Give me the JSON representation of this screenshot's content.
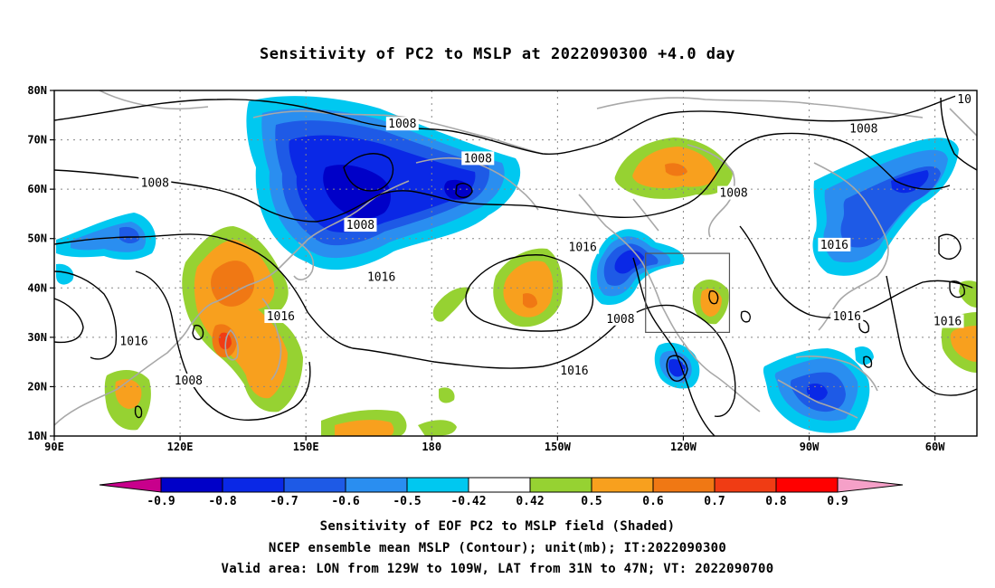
{
  "title": "Sensitivity of PC2 to MSLP at 2022090300 +4.0 day",
  "map": {
    "lon_range": [
      90,
      310
    ],
    "lat_range": [
      10,
      80
    ],
    "lat_ticks": [
      {
        "value": 10,
        "label": "10N"
      },
      {
        "value": 20,
        "label": "20N"
      },
      {
        "value": 30,
        "label": "30N"
      },
      {
        "value": 40,
        "label": "40N"
      },
      {
        "value": 50,
        "label": "50N"
      },
      {
        "value": 60,
        "label": "60N"
      },
      {
        "value": 70,
        "label": "70N"
      },
      {
        "value": 80,
        "label": "80N"
      }
    ],
    "lon_ticks": [
      {
        "value": 90,
        "label": "90E"
      },
      {
        "value": 120,
        "label": "120E"
      },
      {
        "value": 150,
        "label": "150E"
      },
      {
        "value": 180,
        "label": "180"
      },
      {
        "value": 210,
        "label": "150W"
      },
      {
        "value": 240,
        "label": "120W"
      },
      {
        "value": 270,
        "label": "90W"
      },
      {
        "value": 300,
        "label": "60W"
      }
    ],
    "valid_area": {
      "lon": [
        231,
        251
      ],
      "lat": [
        31,
        47
      ]
    },
    "contour_labels": [
      {
        "text": "1008",
        "lon": 173,
        "lat": 73
      },
      {
        "text": "1008",
        "lon": 191,
        "lat": 66
      },
      {
        "text": "1008",
        "lon": 114,
        "lat": 61
      },
      {
        "text": "1008",
        "lon": 163,
        "lat": 52.5
      },
      {
        "text": "1008",
        "lon": 252,
        "lat": 59
      },
      {
        "text": "1008",
        "lon": 283,
        "lat": 72
      },
      {
        "text": "1008",
        "lon": 225,
        "lat": 33.5
      },
      {
        "text": "1008",
        "lon": 122,
        "lat": 21
      },
      {
        "text": "1016",
        "lon": 216,
        "lat": 48
      },
      {
        "text": "1016",
        "lon": 168,
        "lat": 42
      },
      {
        "text": "1016",
        "lon": 144,
        "lat": 34
      },
      {
        "text": "1016",
        "lon": 109,
        "lat": 29
      },
      {
        "text": "1016",
        "lon": 214,
        "lat": 23
      },
      {
        "text": "1016",
        "lon": 276,
        "lat": 48.5
      },
      {
        "text": "1016",
        "lon": 279,
        "lat": 34
      },
      {
        "text": "1016",
        "lon": 303,
        "lat": 33
      },
      {
        "text": "10",
        "lon": 307,
        "lat": 78
      }
    ],
    "shaded_colors": {
      "blue_dark": "#0000c8",
      "blue": "#0a28e6",
      "blue_mid": "#1e5ae6",
      "blue_light": "#2a8ef0",
      "cyan": "#00c8f0",
      "green": "#96d232",
      "orange_light": "#f8a01e",
      "orange": "#f07814",
      "red_orange": "#f03c14"
    }
  },
  "colorbar": {
    "labels": [
      "-0.9",
      "-0.8",
      "-0.7",
      "-0.6",
      "-0.5",
      "-0.42",
      "0.42",
      "0.5",
      "0.6",
      "0.7",
      "0.8",
      "0.9"
    ],
    "colors": [
      "#0000c8",
      "#0a28e6",
      "#1e5ae6",
      "#2a8ef0",
      "#00c8f0",
      "#ffffff",
      "#96d232",
      "#f8a01e",
      "#f07814",
      "#f03c14",
      "#ff0000"
    ],
    "left_arrow_color": "#c8008c",
    "right_arrow_color": "#f5a0c8"
  },
  "captions": {
    "line1": "Sensitivity of EOF PC2 to MSLP field (Shaded)",
    "line2": "NCEP ensemble mean MSLP (Contour); unit(mb); IT:2022090300",
    "line3": "Valid area: LON from 129W to 109W, LAT from 31N to 47N; VT: 2022090700"
  }
}
